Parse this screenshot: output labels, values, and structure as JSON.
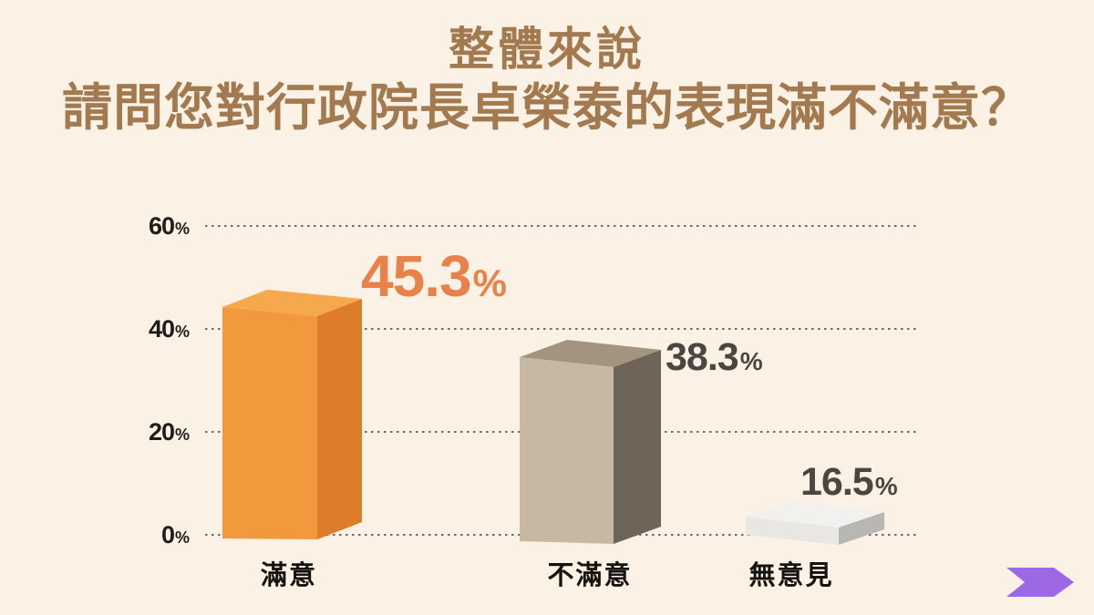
{
  "page": {
    "background": "#FBF1E4"
  },
  "title": {
    "line1": "整體來說",
    "line2": "請問您對行政院長卓榮泰的表現滿不滿意？",
    "color": "#A37A50"
  },
  "chart_data": {
    "type": "bar",
    "title": "整體來說 請問您對行政院長卓榮泰的表現滿不滿意？",
    "categories": [
      "滿意",
      "不滿意",
      "無意見"
    ],
    "values": [
      45.3,
      38.3,
      16.5
    ],
    "unit": "%",
    "ylim": [
      0,
      60
    ],
    "yticks": [
      60,
      40,
      20,
      0
    ],
    "grid": "horizontal-dotted",
    "legend": "none",
    "ytick_labels": [
      {
        "value": "60",
        "suffix": "%"
      },
      {
        "value": "40",
        "suffix": "%"
      },
      {
        "value": "20",
        "suffix": "%"
      },
      {
        "value": "0",
        "suffix": "%"
      }
    ],
    "bar_value_labels": [
      {
        "value": "45.3",
        "suffix": "%",
        "color": "#E8824A"
      },
      {
        "value": "38.3",
        "suffix": "%",
        "color": "#4C4641"
      },
      {
        "value": "16.5",
        "suffix": "%",
        "color": "#4C4641"
      }
    ],
    "bar_colors": [
      {
        "front": "#F2993E",
        "side": "#DD7C2B",
        "top": "#F5A94C"
      },
      {
        "front": "#C7B8A4",
        "side": "#6F6458",
        "top": "#A3947F"
      },
      {
        "front": "#E9E7E4",
        "side": "#B9B7B4",
        "top": "#F2F1EF"
      }
    ],
    "grid_color": "#6F6B64",
    "axis_text_color": "#1F1D1A",
    "category_text_color": "#151310"
  },
  "footer": {
    "arrow_color": "#9D68E6",
    "arrow_icon": "forward-arrow"
  }
}
